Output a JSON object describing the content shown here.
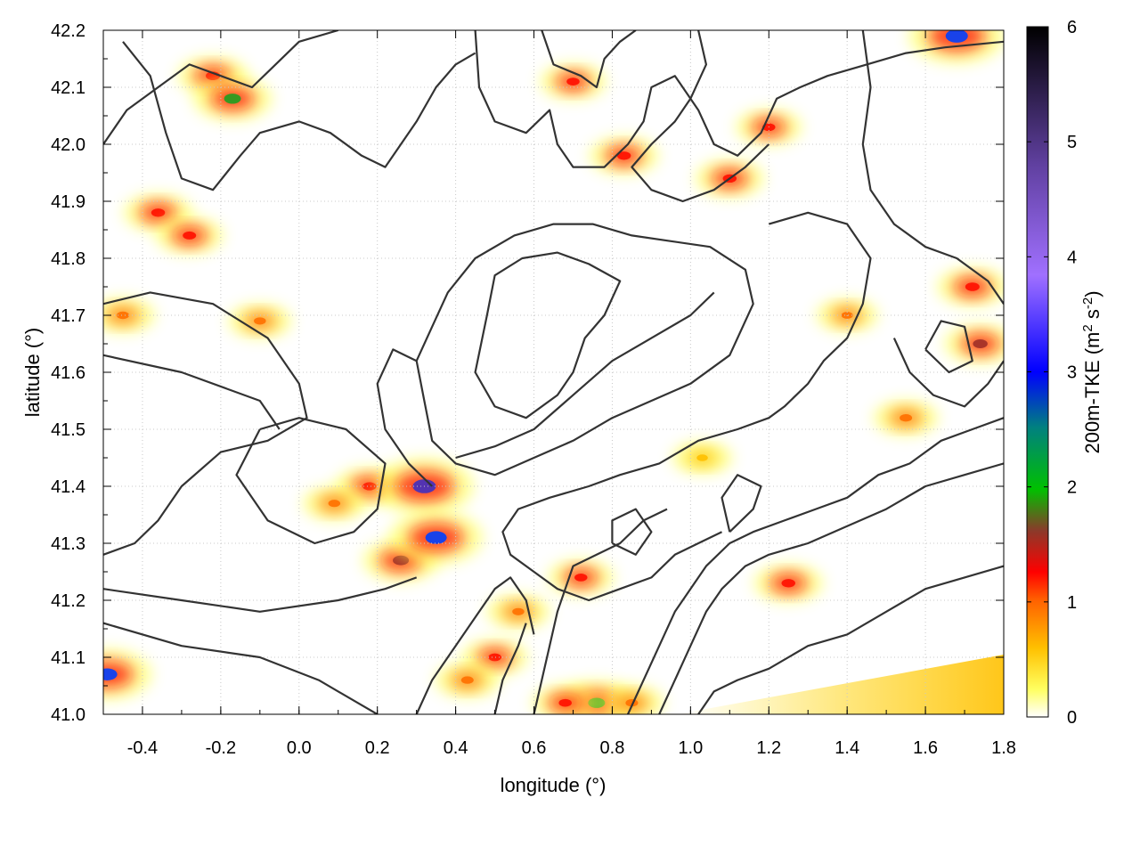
{
  "chart_data": {
    "type": "heatmap",
    "title": "",
    "xlabel": "longitude (°)",
    "ylabel": "latitude (°)",
    "xlim": [
      -0.5,
      1.8
    ],
    "ylim": [
      41.0,
      42.2
    ],
    "x_ticks": [
      "-0.4",
      "-0.2",
      "0.0",
      "0.2",
      "0.4",
      "0.6",
      "0.8",
      "1.0",
      "1.2",
      "1.4",
      "1.6",
      "1.8"
    ],
    "y_ticks": [
      "41.0",
      "41.1",
      "41.2",
      "41.3",
      "41.4",
      "41.5",
      "41.6",
      "41.7",
      "41.8",
      "41.9",
      "42.0",
      "42.1",
      "42.2"
    ],
    "grid": true,
    "colorbar": {
      "label_main": "200m-TKE (m",
      "label_sup1": "2",
      "label_mid": " s",
      "label_sup2": "-2",
      "label_end": ")",
      "range": [
        0,
        6
      ],
      "ticks": [
        "0",
        "1",
        "2",
        "3",
        "4",
        "5",
        "6"
      ],
      "colors": [
        "#ffffff",
        "#ffff00",
        "#ffa500",
        "#ff0000",
        "#8b3a2a",
        "#00c000",
        "#0000ff",
        "#a070ff",
        "#000000"
      ]
    },
    "hotspots": [
      {
        "lon": -0.22,
        "lat": 42.12,
        "tke": 1.2
      },
      {
        "lon": -0.17,
        "lat": 42.08,
        "tke": 1.8
      },
      {
        "lon": -0.36,
        "lat": 41.88,
        "tke": 1.1
      },
      {
        "lon": -0.28,
        "lat": 41.84,
        "tke": 1.0
      },
      {
        "lon": -0.45,
        "lat": 41.7,
        "tke": 0.8
      },
      {
        "lon": 0.18,
        "lat": 41.4,
        "tke": 1.1
      },
      {
        "lon": 0.26,
        "lat": 41.27,
        "tke": 1.6
      },
      {
        "lon": 0.32,
        "lat": 41.4,
        "tke": 3.2
      },
      {
        "lon": 0.35,
        "lat": 41.31,
        "tke": 2.8
      },
      {
        "lon": 0.09,
        "lat": 41.37,
        "tke": 0.7
      },
      {
        "lon": 0.5,
        "lat": 41.1,
        "tke": 0.9
      },
      {
        "lon": 0.43,
        "lat": 41.06,
        "tke": 0.8
      },
      {
        "lon": 0.72,
        "lat": 41.24,
        "tke": 0.9
      },
      {
        "lon": 0.83,
        "lat": 41.98,
        "tke": 1.1
      },
      {
        "lon": 0.7,
        "lat": 42.11,
        "tke": 0.9
      },
      {
        "lon": 1.1,
        "lat": 41.94,
        "tke": 1.1
      },
      {
        "lon": 1.2,
        "lat": 42.03,
        "tke": 0.9
      },
      {
        "lon": 1.25,
        "lat": 41.23,
        "tke": 1.1
      },
      {
        "lon": 1.72,
        "lat": 41.75,
        "tke": 1.2
      },
      {
        "lon": 1.74,
        "lat": 41.65,
        "tke": 1.3
      },
      {
        "lon": 0.76,
        "lat": 41.02,
        "tke": 1.8
      },
      {
        "lon": -0.49,
        "lat": 41.07,
        "tke": 2.5
      },
      {
        "lon": 1.68,
        "lat": 42.19,
        "tke": 3.0
      },
      {
        "lon": 1.55,
        "lat": 41.52,
        "tke": 0.8
      },
      {
        "lon": 0.68,
        "lat": 41.02,
        "tke": 0.9
      },
      {
        "lon": 0.85,
        "lat": 41.02,
        "tke": 0.8
      },
      {
        "lon": 0.56,
        "lat": 41.18,
        "tke": 0.7
      },
      {
        "lon": -0.1,
        "lat": 41.69,
        "tke": 0.7
      },
      {
        "lon": 1.4,
        "lat": 41.7,
        "tke": 0.6
      },
      {
        "lon": 1.03,
        "lat": 41.45,
        "tke": 0.5
      }
    ],
    "contours": [
      [
        [
          -0.5,
          41.72
        ],
        [
          -0.38,
          41.74
        ],
        [
          -0.22,
          41.72
        ],
        [
          -0.08,
          41.66
        ],
        [
          0.0,
          41.58
        ],
        [
          0.02,
          41.52
        ],
        [
          -0.08,
          41.48
        ],
        [
          -0.2,
          41.46
        ],
        [
          -0.3,
          41.4
        ],
        [
          -0.36,
          41.34
        ],
        [
          -0.42,
          41.3
        ],
        [
          -0.5,
          41.28
        ]
      ],
      [
        [
          -0.1,
          41.5
        ],
        [
          -0.16,
          41.42
        ],
        [
          -0.08,
          41.34
        ],
        [
          0.04,
          41.3
        ],
        [
          0.14,
          41.32
        ],
        [
          0.2,
          41.36
        ],
        [
          0.22,
          41.44
        ],
        [
          0.12,
          41.5
        ],
        [
          0.0,
          41.52
        ],
        [
          -0.1,
          41.5
        ]
      ],
      [
        [
          -0.5,
          41.63
        ],
        [
          -0.3,
          41.6
        ],
        [
          -0.1,
          41.55
        ],
        [
          -0.05,
          41.5
        ]
      ],
      [
        [
          -0.5,
          41.22
        ],
        [
          -0.3,
          41.2
        ],
        [
          -0.1,
          41.18
        ],
        [
          0.1,
          41.2
        ],
        [
          0.22,
          41.22
        ],
        [
          0.3,
          41.24
        ]
      ],
      [
        [
          -0.5,
          41.16
        ],
        [
          -0.3,
          41.12
        ],
        [
          -0.1,
          41.1
        ],
        [
          0.05,
          41.06
        ],
        [
          0.15,
          41.02
        ],
        [
          0.2,
          41.0
        ]
      ],
      [
        [
          0.34,
          41.4
        ],
        [
          0.28,
          41.44
        ],
        [
          0.22,
          41.5
        ],
        [
          0.2,
          41.58
        ],
        [
          0.24,
          41.64
        ],
        [
          0.3,
          41.62
        ],
        [
          0.32,
          41.55
        ],
        [
          0.34,
          41.48
        ],
        [
          0.4,
          41.44
        ],
        [
          0.5,
          41.42
        ],
        [
          0.6,
          41.45
        ],
        [
          0.7,
          41.48
        ],
        [
          0.8,
          41.52
        ],
        [
          0.9,
          41.55
        ],
        [
          1.0,
          41.58
        ],
        [
          1.1,
          41.63
        ],
        [
          1.16,
          41.72
        ],
        [
          1.14,
          41.78
        ],
        [
          1.05,
          41.82
        ],
        [
          0.95,
          41.83
        ],
        [
          0.85,
          41.84
        ],
        [
          0.75,
          41.86
        ],
        [
          0.65,
          41.86
        ],
        [
          0.55,
          41.84
        ],
        [
          0.45,
          41.8
        ],
        [
          0.38,
          41.74
        ],
        [
          0.34,
          41.68
        ],
        [
          0.3,
          41.62
        ]
      ],
      [
        [
          0.48,
          41.7
        ],
        [
          0.5,
          41.77
        ],
        [
          0.57,
          41.8
        ],
        [
          0.66,
          41.81
        ],
        [
          0.74,
          41.79
        ],
        [
          0.82,
          41.76
        ],
        [
          0.78,
          41.7
        ],
        [
          0.73,
          41.66
        ],
        [
          0.7,
          41.6
        ],
        [
          0.66,
          41.56
        ],
        [
          0.58,
          41.52
        ],
        [
          0.5,
          41.54
        ],
        [
          0.45,
          41.6
        ],
        [
          0.48,
          41.7
        ]
      ],
      [
        [
          0.4,
          41.45
        ],
        [
          0.5,
          41.47
        ],
        [
          0.6,
          41.5
        ],
        [
          0.7,
          41.56
        ],
        [
          0.8,
          41.62
        ],
        [
          0.9,
          41.66
        ],
        [
          1.0,
          41.7
        ],
        [
          1.06,
          41.74
        ]
      ],
      [
        [
          -0.5,
          42.0
        ],
        [
          -0.44,
          42.06
        ],
        [
          -0.36,
          42.1
        ],
        [
          -0.28,
          42.14
        ],
        [
          -0.2,
          42.12
        ],
        [
          -0.12,
          42.1
        ],
        [
          -0.06,
          42.14
        ],
        [
          0.0,
          42.18
        ],
        [
          0.1,
          42.2
        ]
      ],
      [
        [
          -0.45,
          42.18
        ],
        [
          -0.38,
          42.12
        ],
        [
          -0.34,
          42.02
        ],
        [
          -0.3,
          41.94
        ],
        [
          -0.22,
          41.92
        ],
        [
          -0.15,
          41.98
        ],
        [
          -0.1,
          42.02
        ],
        [
          0.0,
          42.04
        ],
        [
          0.08,
          42.02
        ],
        [
          0.16,
          41.98
        ],
        [
          0.22,
          41.96
        ],
        [
          0.26,
          42.0
        ],
        [
          0.3,
          42.04
        ],
        [
          0.35,
          42.1
        ],
        [
          0.4,
          42.14
        ],
        [
          0.45,
          42.16
        ]
      ],
      [
        [
          0.45,
          42.2
        ],
        [
          0.46,
          42.1
        ],
        [
          0.5,
          42.04
        ],
        [
          0.58,
          42.02
        ],
        [
          0.64,
          42.06
        ],
        [
          0.66,
          42.0
        ],
        [
          0.7,
          41.96
        ],
        [
          0.78,
          41.96
        ],
        [
          0.84,
          42.0
        ],
        [
          0.88,
          42.04
        ],
        [
          0.9,
          42.1
        ],
        [
          0.96,
          42.12
        ],
        [
          1.02,
          42.06
        ],
        [
          1.06,
          42.0
        ],
        [
          1.12,
          41.98
        ],
        [
          1.18,
          42.02
        ],
        [
          1.22,
          42.08
        ],
        [
          1.28,
          42.1
        ],
        [
          1.35,
          42.12
        ],
        [
          1.45,
          42.14
        ],
        [
          1.55,
          42.16
        ],
        [
          1.65,
          42.17
        ],
        [
          1.8,
          42.18
        ]
      ],
      [
        [
          0.62,
          42.2
        ],
        [
          0.65,
          42.14
        ],
        [
          0.72,
          42.12
        ],
        [
          0.76,
          42.1
        ],
        [
          0.78,
          42.15
        ],
        [
          0.82,
          42.18
        ],
        [
          0.86,
          42.2
        ]
      ],
      [
        [
          1.02,
          42.2
        ],
        [
          1.04,
          42.14
        ],
        [
          1.0,
          42.08
        ],
        [
          0.96,
          42.04
        ],
        [
          0.9,
          42.0
        ],
        [
          0.85,
          41.96
        ],
        [
          0.9,
          41.92
        ],
        [
          0.98,
          41.9
        ],
        [
          1.06,
          41.92
        ],
        [
          1.14,
          41.96
        ],
        [
          1.2,
          42.0
        ]
      ],
      [
        [
          1.2,
          41.86
        ],
        [
          1.3,
          41.88
        ],
        [
          1.4,
          41.86
        ],
        [
          1.46,
          41.8
        ],
        [
          1.44,
          41.72
        ],
        [
          1.4,
          41.66
        ],
        [
          1.34,
          41.62
        ],
        [
          1.3,
          41.58
        ],
        [
          1.24,
          41.54
        ],
        [
          1.2,
          41.52
        ],
        [
          1.12,
          41.5
        ],
        [
          1.02,
          41.48
        ],
        [
          0.92,
          41.44
        ],
        [
          0.82,
          41.42
        ],
        [
          0.74,
          41.4
        ],
        [
          0.64,
          41.38
        ],
        [
          0.56,
          41.36
        ],
        [
          0.52,
          41.32
        ],
        [
          0.54,
          41.28
        ],
        [
          0.6,
          41.25
        ],
        [
          0.66,
          41.22
        ],
        [
          0.74,
          41.2
        ],
        [
          0.82,
          41.22
        ],
        [
          0.9,
          41.24
        ],
        [
          0.96,
          41.28
        ],
        [
          1.02,
          41.3
        ],
        [
          1.08,
          41.32
        ]
      ],
      [
        [
          1.44,
          42.2
        ],
        [
          1.46,
          42.1
        ],
        [
          1.44,
          42.0
        ],
        [
          1.46,
          41.92
        ],
        [
          1.52,
          41.86
        ],
        [
          1.6,
          41.82
        ],
        [
          1.68,
          41.8
        ],
        [
          1.76,
          41.76
        ],
        [
          1.8,
          41.72
        ]
      ],
      [
        [
          1.02,
          41.0
        ],
        [
          1.06,
          41.04
        ],
        [
          1.12,
          41.06
        ],
        [
          1.2,
          41.08
        ],
        [
          1.3,
          41.12
        ],
        [
          1.4,
          41.14
        ],
        [
          1.5,
          41.18
        ],
        [
          1.6,
          41.22
        ],
        [
          1.7,
          41.24
        ],
        [
          1.8,
          41.26
        ]
      ],
      [
        [
          0.84,
          41.0
        ],
        [
          0.88,
          41.06
        ],
        [
          0.92,
          41.12
        ],
        [
          0.96,
          41.18
        ],
        [
          1.0,
          41.22
        ],
        [
          1.04,
          41.26
        ],
        [
          1.1,
          41.3
        ],
        [
          1.16,
          41.32
        ],
        [
          1.24,
          41.34
        ],
        [
          1.32,
          41.36
        ],
        [
          1.4,
          41.38
        ],
        [
          1.48,
          41.42
        ],
        [
          1.56,
          41.44
        ],
        [
          1.64,
          41.48
        ],
        [
          1.72,
          41.5
        ],
        [
          1.8,
          41.52
        ]
      ],
      [
        [
          0.92,
          41.0
        ],
        [
          0.96,
          41.06
        ],
        [
          1.0,
          41.12
        ],
        [
          1.04,
          41.18
        ],
        [
          1.08,
          41.22
        ],
        [
          1.14,
          41.26
        ],
        [
          1.2,
          41.28
        ],
        [
          1.3,
          41.3
        ],
        [
          1.4,
          41.33
        ],
        [
          1.5,
          41.36
        ],
        [
          1.6,
          41.4
        ],
        [
          1.7,
          41.42
        ],
        [
          1.8,
          41.44
        ]
      ],
      [
        [
          0.6,
          41.0
        ],
        [
          0.62,
          41.06
        ],
        [
          0.64,
          41.12
        ],
        [
          0.66,
          41.18
        ],
        [
          0.68,
          41.22
        ],
        [
          0.7,
          41.26
        ],
        [
          0.76,
          41.28
        ],
        [
          0.82,
          41.3
        ],
        [
          0.88,
          41.34
        ],
        [
          0.94,
          41.36
        ]
      ],
      [
        [
          0.3,
          41.0
        ],
        [
          0.34,
          41.06
        ],
        [
          0.38,
          41.1
        ],
        [
          0.42,
          41.14
        ],
        [
          0.46,
          41.18
        ],
        [
          0.5,
          41.22
        ],
        [
          0.54,
          41.24
        ],
        [
          0.58,
          41.2
        ],
        [
          0.6,
          41.14
        ]
      ],
      [
        [
          0.5,
          41.0
        ],
        [
          0.52,
          41.06
        ],
        [
          0.56,
          41.12
        ],
        [
          0.58,
          41.16
        ]
      ],
      [
        [
          1.52,
          41.66
        ],
        [
          1.56,
          41.6
        ],
        [
          1.62,
          41.56
        ],
        [
          1.7,
          41.54
        ],
        [
          1.76,
          41.58
        ],
        [
          1.8,
          41.62
        ]
      ],
      [
        [
          1.6,
          41.64
        ],
        [
          1.66,
          41.6
        ],
        [
          1.72,
          41.62
        ],
        [
          1.7,
          41.68
        ],
        [
          1.64,
          41.69
        ],
        [
          1.6,
          41.64
        ]
      ],
      [
        [
          0.8,
          41.3
        ],
        [
          0.86,
          41.28
        ],
        [
          0.9,
          41.32
        ],
        [
          0.86,
          41.36
        ],
        [
          0.8,
          41.34
        ],
        [
          0.8,
          41.3
        ]
      ],
      [
        [
          1.1,
          41.32
        ],
        [
          1.16,
          41.36
        ],
        [
          1.18,
          41.4
        ],
        [
          1.12,
          41.42
        ],
        [
          1.08,
          41.38
        ],
        [
          1.1,
          41.32
        ]
      ]
    ]
  }
}
